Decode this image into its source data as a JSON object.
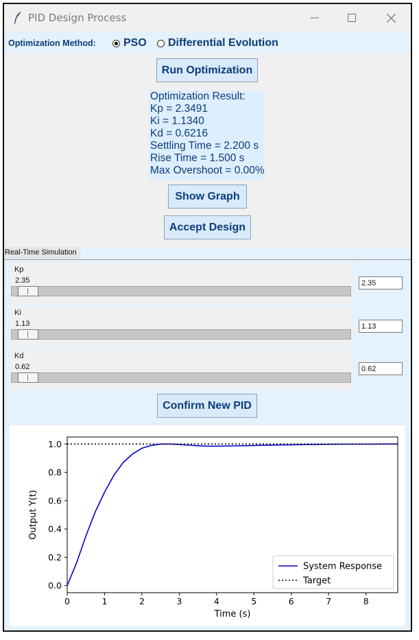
{
  "window": {
    "title": "PID Design Process",
    "icon": "feather-icon"
  },
  "method": {
    "label": "Optimization Method:",
    "options": [
      {
        "label": "PSO",
        "selected": true
      },
      {
        "label": "Differential Evolution",
        "selected": false
      }
    ]
  },
  "buttons": {
    "run": "Run Optimization",
    "show_graph": "Show Graph",
    "accept": "Accept Design",
    "confirm": "Confirm New PID"
  },
  "result": {
    "lines": [
      "Optimization Result:",
      "Kp = 2.3491",
      "Ki = 1.1340",
      "Kd = 0.6216",
      "Settling Time = 2.200 s",
      "Rise Time = 1.500 s",
      "Max Overshoot = 0.00%"
    ]
  },
  "simulation": {
    "section_label": "Real-Time Simulation",
    "sliders": [
      {
        "name": "Kp",
        "value": "2.35",
        "entry": "2.35",
        "fraction": 0.02
      },
      {
        "name": "Ki",
        "value": "1.13",
        "entry": "1.13",
        "fraction": 0.02
      },
      {
        "name": "Kd",
        "value": "0.62",
        "entry": "0.62",
        "fraction": 0.02
      }
    ]
  },
  "chart_data": {
    "type": "line",
    "xlabel": "Time (s)",
    "ylabel": "Output Y(t)",
    "xlim": [
      0,
      8.85
    ],
    "ylim": [
      -0.05,
      1.05
    ],
    "xticks": [
      "0",
      "1",
      "2",
      "3",
      "4",
      "5",
      "6",
      "7",
      "8"
    ],
    "yticks": [
      "0.0",
      "0.2",
      "0.4",
      "0.6",
      "0.8",
      "1.0"
    ],
    "legend_position": "lower-right",
    "series": [
      {
        "name": "System Response",
        "color": "#0000cc",
        "style": "solid",
        "x": [
          0,
          0.25,
          0.5,
          0.75,
          1.0,
          1.25,
          1.5,
          1.75,
          2.0,
          2.25,
          2.5,
          2.75,
          3.0,
          3.25,
          3.5,
          3.75,
          4.0,
          4.5,
          5.0,
          5.5,
          6.0,
          6.5,
          7.0,
          7.5,
          8.0,
          8.5,
          8.85
        ],
        "y": [
          0.0,
          0.16,
          0.35,
          0.52,
          0.66,
          0.78,
          0.87,
          0.93,
          0.97,
          0.99,
          1.0,
          1.0,
          0.997,
          0.992,
          0.988,
          0.985,
          0.985,
          0.987,
          0.99,
          0.993,
          0.995,
          0.997,
          0.998,
          0.999,
          0.999,
          1.0,
          1.0
        ]
      },
      {
        "name": "Target",
        "color": "#000000",
        "style": "dotted",
        "x": [
          0,
          8.85
        ],
        "y": [
          1.0,
          1.0
        ]
      }
    ]
  },
  "colors": {
    "accent": "#0b3d78",
    "panel": "#e5f1fb",
    "button": "#d9eafb"
  }
}
